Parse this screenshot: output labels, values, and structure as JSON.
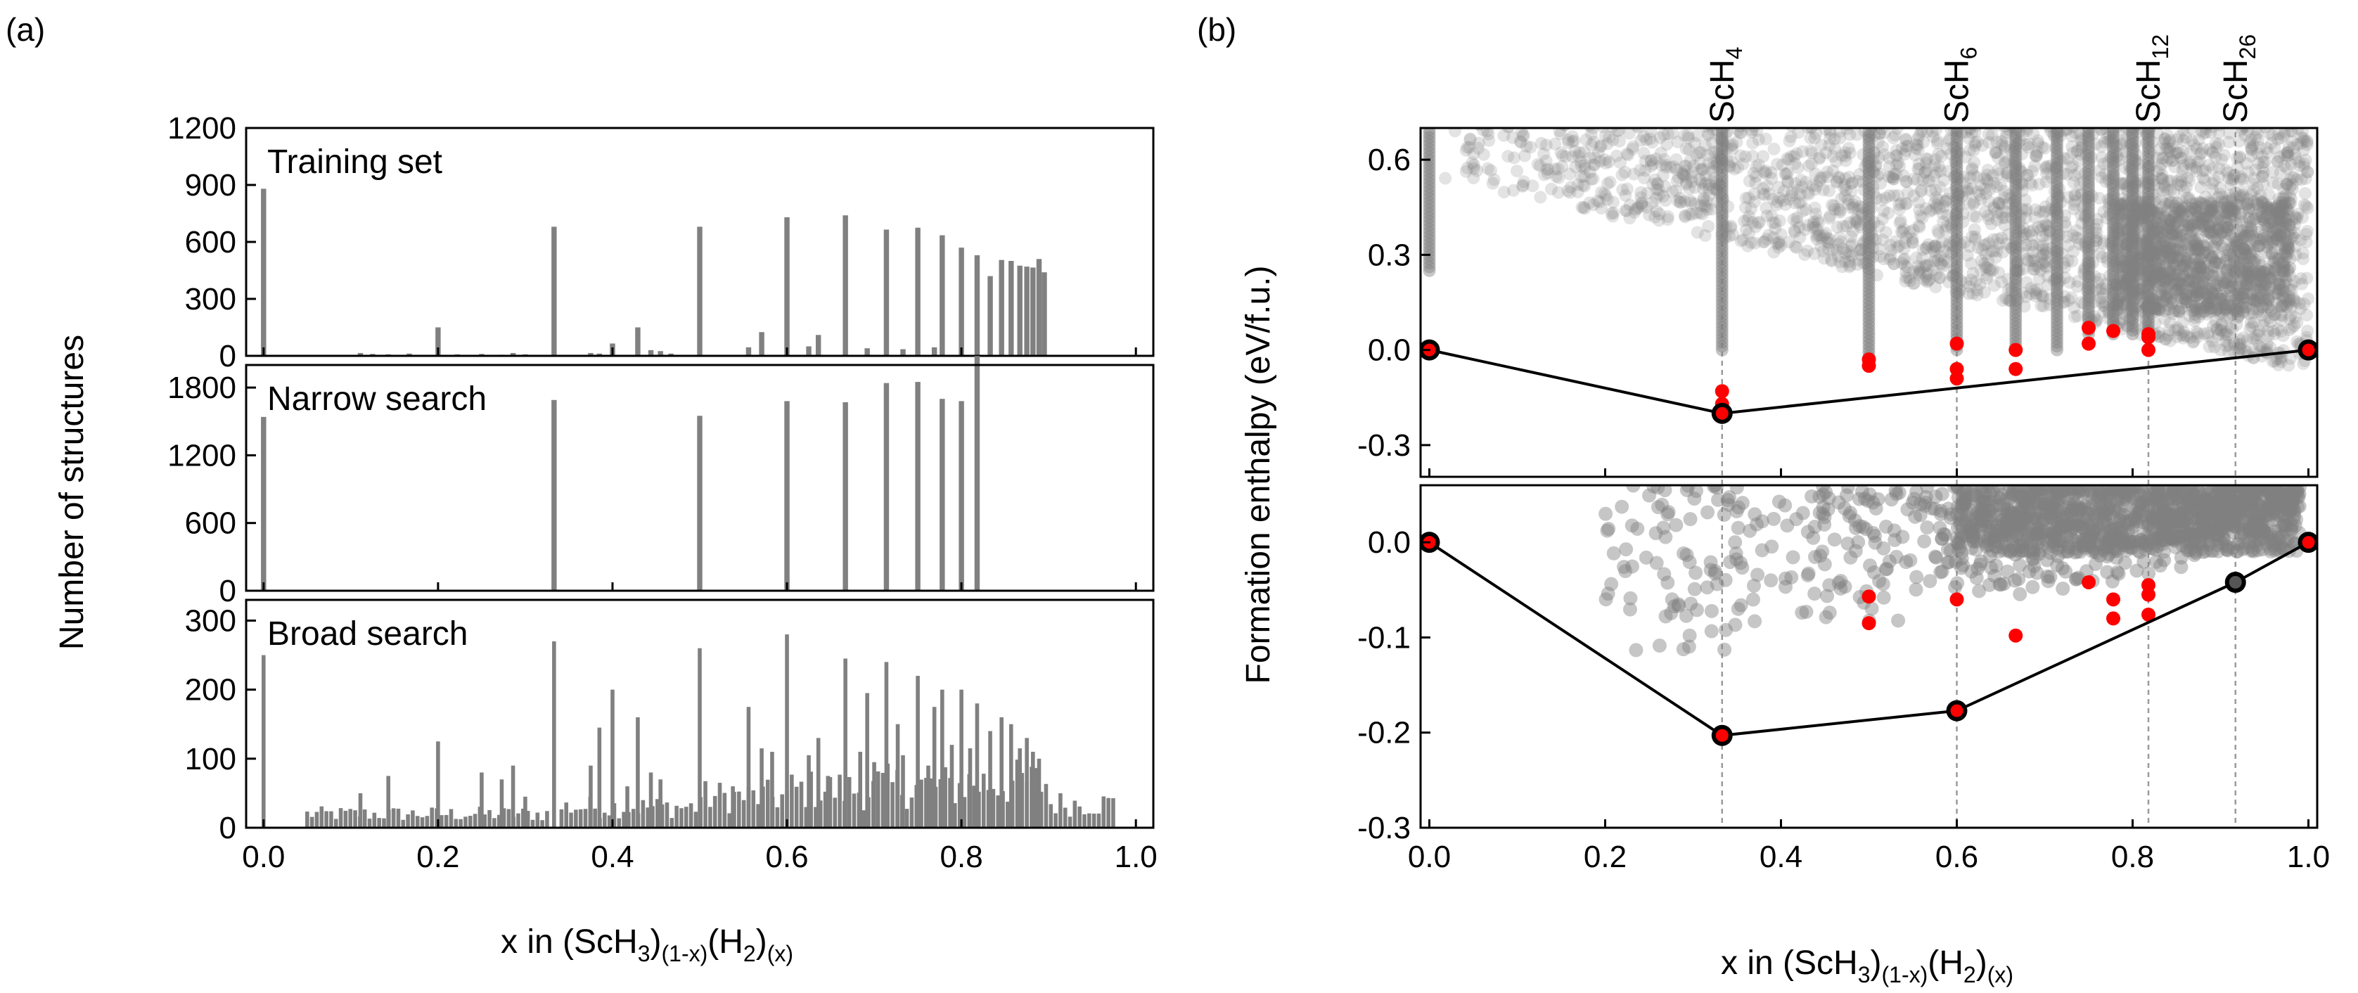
{
  "panel_labels": {
    "a": "(a)",
    "b": "(b)"
  },
  "colors": {
    "bar": "#808080",
    "point": "#808080",
    "highlight": "#ff0000",
    "hull": "#000000",
    "refline": "#9a9a9a"
  },
  "chart_data": [
    {
      "id": "a-training",
      "type": "bar",
      "title": "Training set",
      "xlim": [
        -0.02,
        1.02
      ],
      "ylim": [
        0,
        1200
      ],
      "yticks": [
        0,
        300,
        600,
        900,
        1200
      ],
      "bar_width": 0.006,
      "x": [
        0.0,
        0.111,
        0.125,
        0.143,
        0.167,
        0.2,
        0.222,
        0.25,
        0.273,
        0.286,
        0.3,
        0.333,
        0.375,
        0.385,
        0.4,
        0.429,
        0.444,
        0.455,
        0.467,
        0.5,
        0.556,
        0.571,
        0.6,
        0.625,
        0.636,
        0.667,
        0.692,
        0.714,
        0.733,
        0.75,
        0.769,
        0.778,
        0.8,
        0.818,
        0.833,
        0.846,
        0.857,
        0.867,
        0.875,
        0.882,
        0.889,
        0.895
      ],
      "y": [
        880,
        15,
        10,
        8,
        12,
        150,
        8,
        10,
        6,
        15,
        8,
        680,
        15,
        12,
        65,
        150,
        30,
        25,
        12,
        680,
        45,
        125,
        730,
        50,
        110,
        740,
        40,
        665,
        35,
        675,
        45,
        635,
        570,
        530,
        420,
        505,
        500,
        475,
        470,
        465,
        510,
        440
      ]
    },
    {
      "id": "a-narrow",
      "type": "bar",
      "title": "Narrow search",
      "xlim": [
        -0.02,
        1.02
      ],
      "ylim": [
        0,
        2000
      ],
      "yticks": [
        0,
        600,
        1200,
        1800
      ],
      "bar_width": 0.006,
      "x": [
        0.0,
        0.333,
        0.5,
        0.6,
        0.667,
        0.714,
        0.75,
        0.778,
        0.8,
        0.818
      ],
      "y": [
        1540,
        1690,
        1550,
        1680,
        1670,
        1840,
        1850,
        1700,
        1680,
        2080
      ]
    },
    {
      "id": "a-broad",
      "type": "bar",
      "title": "Broad search",
      "xlabel": "x in (ScH3)(1-x)(H2)(x)",
      "ylim": [
        0,
        330
      ],
      "xlim": [
        -0.02,
        1.02
      ],
      "yticks": [
        0,
        100,
        200,
        300
      ],
      "xticks": [
        0.0,
        0.2,
        0.4,
        0.6,
        0.8,
        1.0
      ],
      "bar_width": 0.0045,
      "note": "major peaks plus a dense low-level background of small bars",
      "x": [
        0.0,
        0.111,
        0.143,
        0.2,
        0.25,
        0.273,
        0.286,
        0.3,
        0.333,
        0.375,
        0.385,
        0.4,
        0.417,
        0.429,
        0.444,
        0.455,
        0.5,
        0.538,
        0.556,
        0.571,
        0.583,
        0.6,
        0.625,
        0.636,
        0.647,
        0.667,
        0.684,
        0.692,
        0.7,
        0.714,
        0.727,
        0.733,
        0.75,
        0.762,
        0.769,
        0.778,
        0.789,
        0.8,
        0.81,
        0.818,
        0.833,
        0.846,
        0.857,
        0.867,
        0.875,
        0.882,
        0.889
      ],
      "y": [
        250,
        50,
        75,
        125,
        80,
        70,
        90,
        45,
        270,
        90,
        145,
        200,
        60,
        160,
        80,
        70,
        260,
        60,
        175,
        115,
        110,
        280,
        105,
        130,
        75,
        245,
        110,
        195,
        95,
        240,
        150,
        105,
        220,
        90,
        175,
        200,
        120,
        200,
        115,
        180,
        140,
        160,
        150,
        115,
        130,
        110,
        100
      ],
      "background_levels": [
        [
          0.05,
          0.33,
          20
        ],
        [
          0.34,
          0.5,
          30
        ],
        [
          0.5,
          0.6,
          45
        ],
        [
          0.6,
          0.7,
          55
        ],
        [
          0.7,
          0.8,
          60
        ],
        [
          0.8,
          0.9,
          65
        ],
        [
          0.9,
          0.975,
          35
        ]
      ]
    },
    {
      "id": "b-top",
      "type": "scatter",
      "ylabel": "Formation enthalpy (eV/f.u.)",
      "xlim": [
        -0.01,
        1.01
      ],
      "ylim": [
        -0.4,
        0.7
      ],
      "yticks": [
        -0.3,
        0.0,
        0.3,
        0.6
      ],
      "composition_lines": [
        {
          "label": "ScH",
          "sub": "4",
          "x": 0.333
        },
        {
          "label": "ScH",
          "sub": "6",
          "x": 0.6
        },
        {
          "label": "ScH",
          "sub": "12",
          "x": 0.818
        },
        {
          "label": "ScH",
          "sub": "26",
          "x": 0.917
        }
      ],
      "hull": {
        "x": [
          0.0,
          0.333,
          1.0
        ],
        "y": [
          0.0,
          -0.2,
          0.0
        ]
      },
      "hull_points": [
        {
          "x": 0.0,
          "y": 0.0
        },
        {
          "x": 0.333,
          "y": -0.2
        },
        {
          "x": 1.0,
          "y": 0.0
        }
      ],
      "red_points": {
        "x": [
          0.333,
          0.333,
          0.5,
          0.5,
          0.6,
          0.6,
          0.6,
          0.667,
          0.667,
          0.75,
          0.75,
          0.778,
          0.818,
          0.818,
          0.818
        ],
        "y": [
          -0.13,
          -0.17,
          -0.03,
          -0.05,
          -0.06,
          -0.09,
          0.02,
          -0.06,
          0.0,
          0.07,
          0.02,
          0.06,
          0.05,
          0.0,
          0.04
        ]
      },
      "dense_columns": [
        {
          "x": 0.333,
          "ylow": 0.0,
          "yhigh": 0.7
        },
        {
          "x": 0.5,
          "ylow": -0.02,
          "yhigh": 0.7
        },
        {
          "x": 0.6,
          "ylow": 0.0,
          "yhigh": 0.7
        },
        {
          "x": 0.667,
          "ylow": 0.0,
          "yhigh": 0.7
        },
        {
          "x": 0.714,
          "ylow": 0.0,
          "yhigh": 0.7
        },
        {
          "x": 0.75,
          "ylow": 0.05,
          "yhigh": 0.7
        },
        {
          "x": 0.778,
          "ylow": 0.05,
          "yhigh": 0.7
        },
        {
          "x": 0.8,
          "ylow": 0.05,
          "yhigh": 0.7
        },
        {
          "x": 0.818,
          "ylow": 0.05,
          "yhigh": 0.7
        },
        {
          "x": 0.0,
          "ylow": 0.25,
          "yhigh": 0.7
        }
      ],
      "cloud_note": "dense gray cloud of semi-transparent points rising toward x=1"
    },
    {
      "id": "b-bottom",
      "type": "scatter",
      "xlabel": "x in (ScH3)(1-x)(H2)(x)",
      "xlim": [
        -0.01,
        1.01
      ],
      "ylim": [
        -0.3,
        0.06
      ],
      "yticks": [
        -0.3,
        -0.2,
        -0.1,
        0.0
      ],
      "xticks": [
        0.0,
        0.2,
        0.4,
        0.6,
        0.8,
        1.0
      ],
      "composition_lines_x": [
        0.333,
        0.6,
        0.818,
        0.917
      ],
      "hull": {
        "x": [
          0.0,
          0.333,
          0.6,
          0.917,
          1.0
        ],
        "y": [
          0.0,
          -0.203,
          -0.177,
          -0.042,
          0.0
        ]
      },
      "hull_points": [
        {
          "x": 0.0,
          "y": 0.0
        },
        {
          "x": 0.333,
          "y": -0.203
        },
        {
          "x": 0.6,
          "y": -0.177
        },
        {
          "x": 0.917,
          "y": -0.042
        },
        {
          "x": 1.0,
          "y": 0.0
        }
      ],
      "hull_point_red": [
        true,
        true,
        true,
        false,
        true
      ],
      "red_points": {
        "x": [
          0.5,
          0.5,
          0.6,
          0.667,
          0.75,
          0.778,
          0.778,
          0.818,
          0.818,
          0.818
        ],
        "y": [
          -0.057,
          -0.085,
          -0.06,
          -0.098,
          -0.042,
          -0.06,
          -0.08,
          -0.045,
          -0.055,
          -0.076
        ]
      }
    }
  ],
  "axis_text": {
    "a_ylabel": "Number of structures",
    "xlabel_parts": {
      "main": "x in (ScH",
      "s1": "3",
      "p1": ")",
      "s2": "(1-x)",
      "p2": "(H",
      "s3": "2",
      "p3": ")",
      "s4": "(x)"
    }
  }
}
